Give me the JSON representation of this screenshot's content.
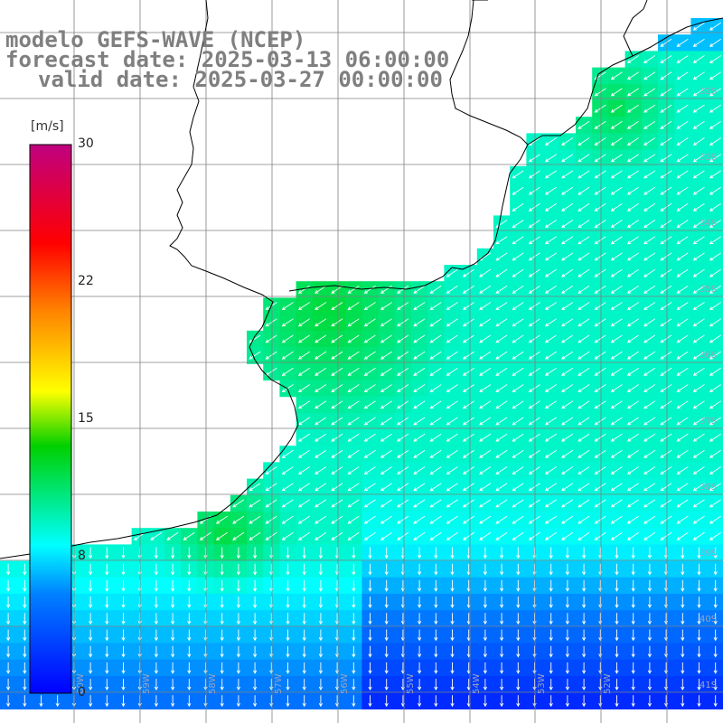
{
  "title": {
    "line1": "modelo GEFS-WAVE (NCEP)",
    "line2": "forecast date: 2025-03-13 06:00:00",
    "line3": "valid date: 2025-03-27 00:00:00"
  },
  "colorbar": {
    "unit": "[m/s]",
    "min": 0,
    "max": 30,
    "ticks": [
      "0",
      "8",
      "15",
      "22",
      "30"
    ],
    "tick_values": [
      0,
      8,
      15,
      22,
      30
    ],
    "colors": [
      "#0000ff",
      "#0080ff",
      "#00ffff",
      "#00ff00",
      "#ffff00",
      "#ff8000",
      "#ff0000",
      "#c00080"
    ]
  },
  "map": {
    "lat_labels": [
      "32S",
      "33S",
      "34S",
      "35S",
      "36S",
      "37S",
      "38S",
      "39S",
      "40S",
      "41S"
    ],
    "lon_labels": [
      "60W",
      "59W",
      "58W",
      "57W",
      "56W",
      "55W",
      "54W",
      "53W",
      "52W"
    ],
    "land_color": "#ffffff",
    "coast_color": "#000000",
    "grid_color": "#808080",
    "wind_direction": "southwest"
  }
}
